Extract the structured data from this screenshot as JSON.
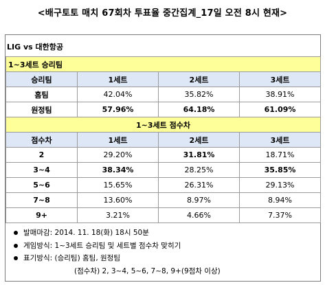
{
  "title": "<배구토토 매치 67회차 투표율 중간집계_17일 오전 8시 현재>",
  "match": "LIG vs 대한항공",
  "section1": {
    "label": "1~3세트 승리팀",
    "headers": [
      "승리팀",
      "1세트",
      "2세트",
      "3세트"
    ],
    "rows": [
      {
        "label": "홈팀",
        "values": [
          "42.04%",
          "35.82%",
          "38.91%"
        ],
        "bold": [
          false,
          false,
          false
        ]
      },
      {
        "label": "원정팀",
        "values": [
          "57.96%",
          "64.18%",
          "61.09%"
        ],
        "bold": [
          true,
          true,
          true
        ]
      }
    ]
  },
  "section2": {
    "label": "1~3세트 점수차",
    "headers": [
      "점수차",
      "1세트",
      "2세트",
      "3세트"
    ],
    "rows": [
      {
        "label": "2",
        "values": [
          "29.20%",
          "31.81%",
          "18.71%"
        ],
        "bold": [
          false,
          true,
          false
        ]
      },
      {
        "label": "3~4",
        "values": [
          "38.34%",
          "28.25%",
          "35.85%"
        ],
        "bold": [
          true,
          false,
          true
        ]
      },
      {
        "label": "5~6",
        "values": [
          "15.65%",
          "26.31%",
          "29.13%"
        ],
        "bold": [
          false,
          false,
          false
        ]
      },
      {
        "label": "7~8",
        "values": [
          "13.60%",
          "8.97%",
          "8.94%"
        ],
        "bold": [
          false,
          false,
          false
        ]
      },
      {
        "label": "9+",
        "values": [
          "3.21%",
          "4.66%",
          "7.37%"
        ],
        "bold": [
          false,
          false,
          false
        ]
      }
    ]
  },
  "notes": [
    "발매마감: 2014. 11. 18(화) 18시 50분",
    "게임방식: 1~3세트 승리팀 및 세트별 점수차 맞히기",
    "표기방식: (승리팀) 홈팀, 원정팀"
  ],
  "note_sub": "(점수차) 2, 3~4, 5~6, 7~8, 9+(9점차 이상)"
}
